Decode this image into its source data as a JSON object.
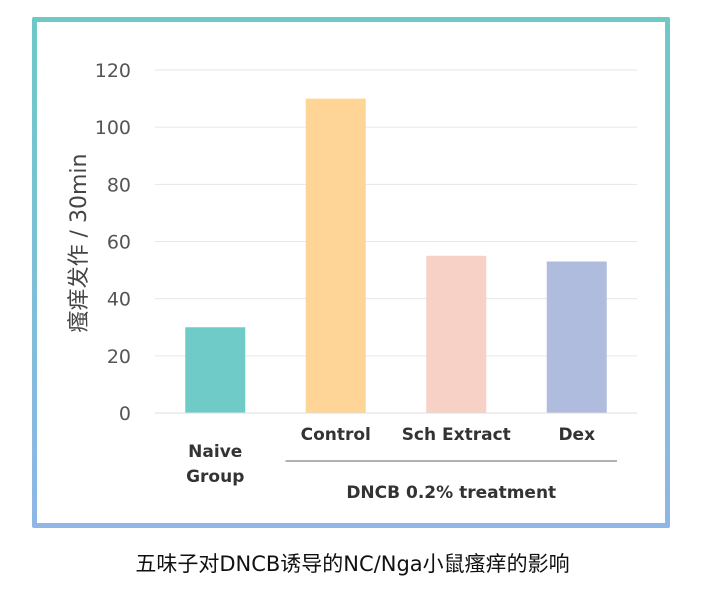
{
  "chart_data": {
    "type": "bar",
    "categories": [
      "Naive Group",
      "Control",
      "Sch Extract",
      "Dex"
    ],
    "category_lines": [
      [
        "Naive",
        "Group"
      ],
      [
        "Control"
      ],
      [
        "Sch Extract"
      ],
      [
        "Dex"
      ]
    ],
    "values": [
      30,
      110,
      55,
      53
    ],
    "colors": [
      "#6ecbc8",
      "#fed597",
      "#f7d0c6",
      "#b0bcde"
    ],
    "ylabel": "瘙痒发作 / 30min",
    "xlabel": "",
    "ylim": [
      0,
      120
    ],
    "yticks": [
      0,
      20,
      40,
      60,
      80,
      100,
      120
    ],
    "grid": true,
    "group_label": "DNCB 0.2% treatment",
    "group_categories": [
      "Control",
      "Sch Extract",
      "Dex"
    ]
  },
  "caption": "五味子对DNCB诱导的NC/Nga小鼠瘙痒的影响",
  "colors": {
    "frame_top": "#6cc9c6",
    "frame_bottom": "#8fb6e6",
    "grid": "#e6e6e6"
  }
}
